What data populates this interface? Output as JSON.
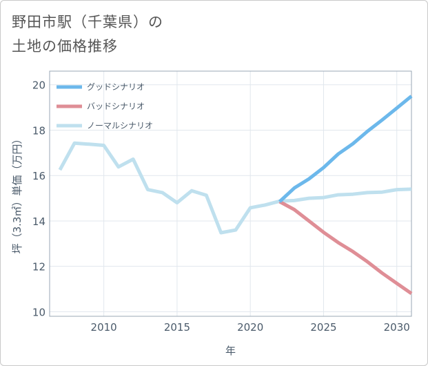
{
  "title": {
    "line1": "野田市駅（千葉県）の",
    "line2": "土地の価格推移"
  },
  "chart_data": {
    "type": "line",
    "xlabel": "年",
    "ylabel": "坪（3.3㎡）単価（万円）",
    "xlim": [
      2006.3,
      2031
    ],
    "ylim": [
      9.8,
      20.6
    ],
    "xticks": [
      2010,
      2015,
      2020,
      2025,
      2030
    ],
    "yticks": [
      10,
      12,
      14,
      16,
      18,
      20
    ],
    "grid": true,
    "legend_position": "top-left",
    "series": [
      {
        "name": "グッドシナリオ",
        "color": "#6cb8eb",
        "x": [
          2022,
          2023,
          2024,
          2025,
          2026,
          2027,
          2028,
          2029,
          2030,
          2031
        ],
        "values": [
          14.85,
          15.45,
          15.85,
          16.35,
          16.95,
          17.4,
          17.95,
          18.45,
          18.97,
          19.5
        ]
      },
      {
        "name": "バッドシナリオ",
        "color": "#df8e96",
        "x": [
          2022,
          2023,
          2024,
          2025,
          2026,
          2027,
          2028,
          2029,
          2030,
          2031
        ],
        "values": [
          14.85,
          14.5,
          14.0,
          13.5,
          13.05,
          12.65,
          12.2,
          11.7,
          11.25,
          10.8
        ]
      },
      {
        "name": "ノーマルシナリオ",
        "color": "#bfe0ee",
        "x": [
          2007,
          2008,
          2009,
          2010,
          2011,
          2012,
          2013,
          2014,
          2015,
          2016,
          2017,
          2018,
          2019,
          2020,
          2021,
          2022,
          2023,
          2024,
          2025,
          2026,
          2027,
          2028,
          2029,
          2030,
          2031
        ],
        "values": [
          16.25,
          17.43,
          17.38,
          17.33,
          16.38,
          16.72,
          15.38,
          15.25,
          14.8,
          15.33,
          15.13,
          13.48,
          13.6,
          14.58,
          14.7,
          14.87,
          14.9,
          15.0,
          15.03,
          15.15,
          15.18,
          15.25,
          15.27,
          15.38,
          15.4
        ]
      }
    ]
  }
}
